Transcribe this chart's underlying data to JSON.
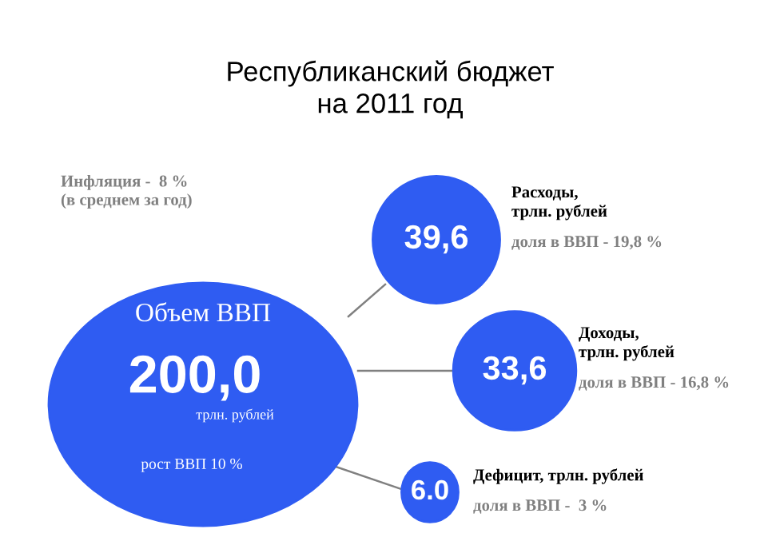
{
  "chart_data": {
    "type": "other",
    "title": "Республиканский бюджет\nна 2011 год",
    "categories": [
      "Объем ВВП",
      "Расходы,\nтрлн. рублей",
      "Доходы,\nтрлн. рублей",
      "Дефицит, трлн. рублей"
    ],
    "values": [
      200.0,
      39.6,
      33.6,
      6.0
    ],
    "value_labels": [
      "200,0",
      "39,6",
      "33,6",
      "6.0"
    ],
    "colors": [
      "#2f5cf2",
      "#2f5cf2",
      "#2f5cf2",
      "#2f5cf2"
    ],
    "annotations": [
      "трлн. рублей",
      "рост ВВП 10 %",
      "доля в ВВП - 19,8 %",
      "доля в ВВП - 16,8 %",
      "доля в ВВП -  3 %",
      "Инфляция -  8 %\n(в среднем за год)"
    ]
  }
}
